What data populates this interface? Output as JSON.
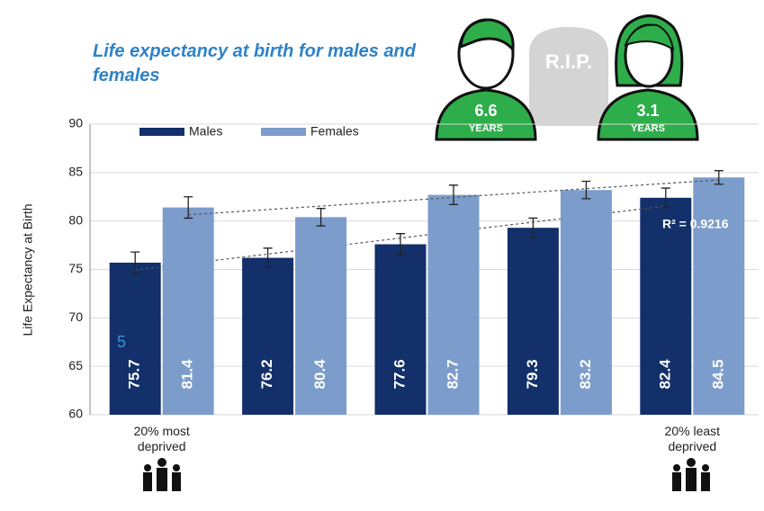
{
  "chart_data": {
    "type": "bar",
    "title": "Life expectancy at birth for males and females",
    "y_label": "Life Expectancy at Birth",
    "categories": [
      "20% most deprived",
      null,
      null,
      null,
      "20% least deprived"
    ],
    "series": [
      {
        "name": "Males",
        "color": "#13306b",
        "values": [
          75.7,
          76.2,
          77.6,
          79.3,
          82.4
        ],
        "errors": [
          1.1,
          1.0,
          1.1,
          1.0,
          1.0
        ]
      },
      {
        "name": "Females",
        "color": "#7c9dcb",
        "values": [
          81.4,
          80.4,
          82.7,
          83.2,
          84.5
        ],
        "errors": [
          1.1,
          0.9,
          1.0,
          0.9,
          0.7
        ]
      }
    ],
    "ylim": [
      60,
      90
    ],
    "yticks": [
      60,
      65,
      70,
      75,
      80,
      85,
      90
    ],
    "trendline": true,
    "r_squared_label": "R² = 0.9216",
    "slide_number": "5",
    "infographic": {
      "tombstone": "R.I.P.",
      "male_gap": 6.6,
      "male_unit": "YEARS",
      "female_gap": 3.1,
      "female_unit": "YEARS"
    }
  }
}
